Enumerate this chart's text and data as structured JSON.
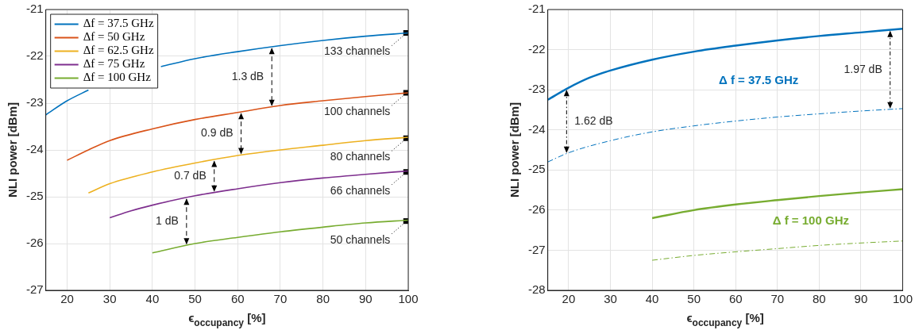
{
  "chart_data": [
    {
      "type": "line",
      "xlabel": "ϵ$_{occupancy}$ [%]",
      "ylabel": "NLI power [dBm]",
      "xlim": [
        15,
        100
      ],
      "ylim": [
        -27,
        -21
      ],
      "xticks": [
        20,
        30,
        40,
        50,
        60,
        70,
        80,
        90,
        100
      ],
      "yticks": [
        -27,
        -26,
        -25,
        -24,
        -23,
        -22,
        -21
      ],
      "grid": true,
      "legend": "top left",
      "series": [
        {
          "name": "Δf = 37.5 GHz",
          "color": "#0072bd",
          "x": [
            15,
            20,
            25,
            34,
            42,
            50,
            60,
            70,
            80,
            90,
            100
          ],
          "values": [
            -23.25,
            -22.95,
            -22.72,
            null,
            -22.22,
            -22.05,
            -21.9,
            -21.77,
            -21.66,
            -21.57,
            -21.5
          ]
        },
        {
          "name": "Δf = 50 GHz",
          "color": "#d95319",
          "x": [
            20,
            25,
            30,
            40,
            50,
            60,
            70,
            80,
            90,
            100
          ],
          "values": [
            -24.22,
            -24.0,
            -23.8,
            -23.55,
            -23.35,
            -23.2,
            -23.05,
            -22.95,
            -22.86,
            -22.78
          ]
        },
        {
          "name": "Δf = 62.5 GHz",
          "color": "#edb120",
          "x": [
            25,
            30,
            40,
            50,
            60,
            70,
            80,
            90,
            100
          ],
          "values": [
            -24.92,
            -24.72,
            -24.47,
            -24.28,
            -24.12,
            -24.0,
            -23.9,
            -23.8,
            -23.73
          ]
        },
        {
          "name": "Δf = 75 GHz",
          "color": "#7e2f8e",
          "x": [
            30,
            35,
            40,
            50,
            60,
            70,
            80,
            90,
            100
          ],
          "values": [
            -25.45,
            -25.3,
            -25.18,
            -24.98,
            -24.83,
            -24.7,
            -24.6,
            -24.52,
            -24.45
          ]
        },
        {
          "name": "Δf = 100 GHz",
          "color": "#77ac30",
          "x": [
            40,
            50,
            60,
            70,
            80,
            90,
            100
          ],
          "values": [
            -26.2,
            -26.0,
            -25.87,
            -25.75,
            -25.65,
            -25.56,
            -25.5
          ]
        },
        {
          "type": "scatter",
          "marker": "square",
          "color": "#000000",
          "x": [
            99.5,
            99.5,
            99.5,
            99.5,
            99.5
          ],
          "values": [
            -21.5,
            -22.78,
            -23.75,
            -24.47,
            -25.52
          ]
        }
      ],
      "annotations": [
        {
          "text": "133 channels",
          "x": 99.5,
          "y": -21.5
        },
        {
          "text": "100 channels",
          "x": 99.5,
          "y": -22.78
        },
        {
          "text": "80 channels",
          "x": 99.5,
          "y": -23.75
        },
        {
          "text": "66 channels",
          "x": 99.5,
          "y": -24.47
        },
        {
          "text": "50 channels",
          "x": 99.5,
          "y": -25.52
        },
        {
          "text": "1.3 dB",
          "x": 68,
          "y": -21.8
        },
        {
          "text": "0.9 dB",
          "x": 60.8,
          "y": -23.19
        },
        {
          "text": "0.7 dB",
          "x": 54.5,
          "y": -24.21
        },
        {
          "text": "1 dB",
          "x": 48,
          "y": -25.02
        }
      ]
    },
    {
      "type": "line",
      "xlabel": "ϵ$_{occupancy}$ [%]",
      "ylabel": "NLI power [dBm]",
      "xlim": [
        15,
        100
      ],
      "ylim": [
        -28,
        -21
      ],
      "xticks": [
        20,
        30,
        40,
        50,
        60,
        70,
        80,
        90,
        100
      ],
      "yticks": [
        -28,
        -27,
        -26,
        -25,
        -24,
        -23,
        -22,
        -21
      ],
      "grid": true,
      "series": [
        {
          "name": "Δ f = 37.5 GHz",
          "color": "#0072bd",
          "x": [
            15,
            20,
            25,
            30,
            40,
            50,
            60,
            70,
            80,
            90,
            100
          ],
          "values": [
            -23.25,
            -22.95,
            -22.7,
            -22.52,
            -22.25,
            -22.05,
            -21.9,
            -21.77,
            -21.66,
            -21.57,
            -21.48
          ]
        },
        {
          "color": "#0072bd",
          "line_style": "dashed",
          "x": [
            15,
            20,
            30,
            40,
            50,
            60,
            70,
            80,
            90,
            100
          ],
          "values": [
            -24.8,
            -24.57,
            -24.27,
            -24.05,
            -23.9,
            -23.78,
            -23.68,
            -23.6,
            -23.53,
            -23.47
          ]
        },
        {
          "name": "Δ f = 100 GHz",
          "color": "#77ac30",
          "x": [
            40,
            50,
            60,
            70,
            80,
            90,
            100
          ],
          "values": [
            -26.2,
            -26.0,
            -25.86,
            -25.75,
            -25.65,
            -25.56,
            -25.48
          ]
        },
        {
          "color": "#77ac30",
          "line_style": "dashed",
          "x": [
            40,
            50,
            60,
            70,
            80,
            90,
            100
          ],
          "values": [
            -27.25,
            -27.13,
            -27.04,
            -26.96,
            -26.88,
            -26.82,
            -26.77
          ]
        }
      ],
      "annotations": [
        {
          "text": "1.62 dB",
          "x": 19.5,
          "y": -22.98
        },
        {
          "text": "1.97 dB",
          "x": 97,
          "y": -21.51
        }
      ]
    }
  ]
}
